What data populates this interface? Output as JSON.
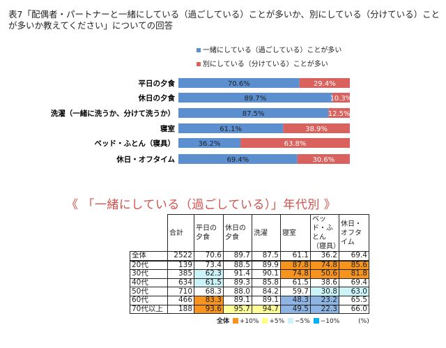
{
  "title": "表7「配偶者・パートナーと一緒にしている（過ごしている）ことが多いか、別にしている（分けている）ことが多いか教えてください」についての回答",
  "subtitle": "《 「一緒にしている（過ごしている）」年代別 》",
  "chart_data": [
    {
      "type": "bar",
      "orientation": "horizontal",
      "stacked": true,
      "categories": [
        "平日の夕食",
        "休日の夕食",
        "洗濯（一緒に洗うか、分けて洗うか）",
        "寝室",
        "ベッド・ふとん（寝具）",
        "休日・オフタイム"
      ],
      "series": [
        {
          "name": "一緒にしている（過ごしている）ことが多い",
          "color": "#5b8fcf",
          "values": [
            70.6,
            89.7,
            87.5,
            61.1,
            36.2,
            69.4
          ],
          "labels": [
            "70.6%",
            "89.7%",
            "87.5%",
            "61.1%",
            "36.2%",
            "69.4%"
          ]
        },
        {
          "name": "別にしている（分けている）ことが多い",
          "color": "#d9625f",
          "values": [
            29.4,
            10.3,
            12.5,
            38.9,
            63.8,
            30.6
          ],
          "labels": [
            "29.4%",
            "10.3%",
            "12.5%",
            "38.9%",
            "63.8%",
            "30.6%"
          ]
        }
      ],
      "xlim": [
        0,
        100
      ],
      "legend": "top"
    },
    {
      "type": "table",
      "columns": [
        "合計",
        "平日の夕食",
        "休日の夕食",
        "洗濯",
        "寝室",
        "ベッド・ふとん（寝具）",
        "休日・オフタイム"
      ],
      "rows": [
        {
          "label": "全体",
          "values": [
            "2522",
            "70.6",
            "89.7",
            "87.5",
            "61.1",
            "36.2",
            "69.4"
          ],
          "hl": [
            "",
            "",
            "",
            "",
            "",
            "",
            ""
          ]
        },
        {
          "label": "20代",
          "values": [
            "139",
            "73.4",
            "88.5",
            "89.9",
            "87.8",
            "74.8",
            "85.6"
          ],
          "hl": [
            "",
            "",
            "",
            "",
            "+10",
            "+10",
            "+10"
          ]
        },
        {
          "label": "30代",
          "values": [
            "385",
            "62.3",
            "91.4",
            "90.1",
            "74.8",
            "50.6",
            "81.8"
          ],
          "hl": [
            "",
            "-5",
            "",
            "",
            "+10",
            "+10",
            "+10"
          ]
        },
        {
          "label": "40代",
          "values": [
            "634",
            "61.5",
            "89.3",
            "85.8",
            "61.5",
            "38.6",
            "69.4"
          ],
          "hl": [
            "",
            "-5",
            "",
            "",
            "",
            "",
            ""
          ]
        },
        {
          "label": "50代",
          "values": [
            "710",
            "68.3",
            "88.0",
            "84.2",
            "59.7",
            "30.8",
            "63.0"
          ],
          "hl": [
            "",
            "",
            "",
            "",
            "",
            "-5",
            "-5"
          ]
        },
        {
          "label": "60代",
          "values": [
            "466",
            "83.3",
            "89.1",
            "89.1",
            "48.3",
            "23.2",
            "65.5"
          ],
          "hl": [
            "",
            "+10",
            "",
            "",
            "-10",
            "-10",
            ""
          ]
        },
        {
          "label": "70代以上",
          "values": [
            "188",
            "93.6",
            "95.7",
            "94.7",
            "49.5",
            "22.3",
            "66.0"
          ],
          "hl": [
            "",
            "+10",
            "+5",
            "+5",
            "-10",
            "-10",
            ""
          ]
        }
      ],
      "legend": {
        "prefix": "全体",
        "items": [
          {
            "code": "+10",
            "label": "+10%",
            "color": "#f7941d"
          },
          {
            "code": "+5",
            "label": "+5%",
            "color": "#ffff80"
          },
          {
            "code": "-5",
            "label": "−5%",
            "color": "#ccf3f8"
          },
          {
            "code": "-10",
            "label": "−10%",
            "color": "#00b0f0"
          }
        ],
        "unit": "(%)"
      },
      "cell_colors": {
        "+10": "#f7941d",
        "+5": "#ffff99",
        "-5": "#ccf3f8",
        "-10": "#8db4e2"
      }
    }
  ]
}
